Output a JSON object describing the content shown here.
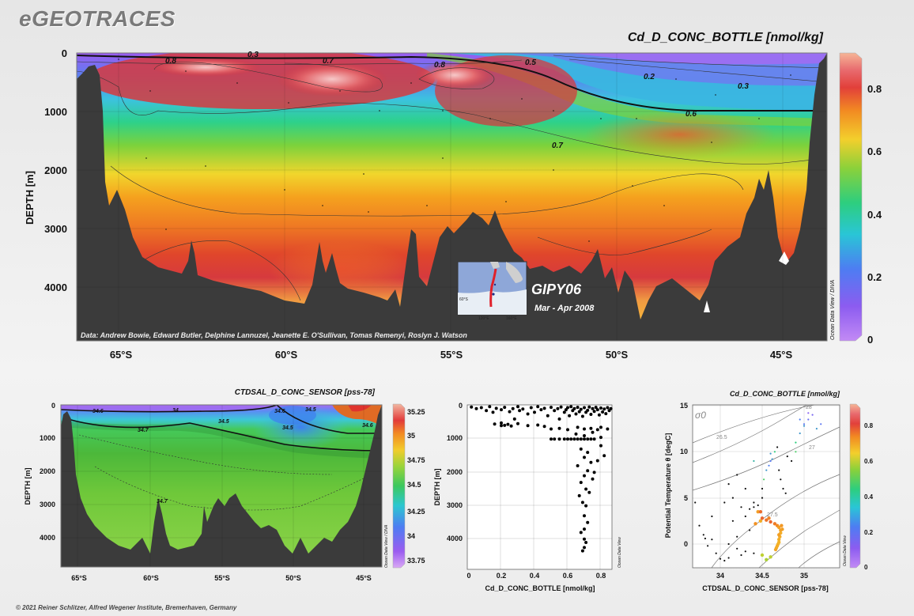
{
  "brand": "eGEOTRACES",
  "footer": "© 2021 Reiner Schlitzer, Alfred Wegener Institute, Bremerhaven, Germany",
  "chart_data": [
    {
      "type": "heatmap",
      "title": "Cd_D_CONC_BOTTLE [nmol/kg]",
      "ylabel": "DEPTH [m]",
      "x_ticks": [
        "65°S",
        "60°S",
        "55°S",
        "50°S",
        "45°S"
      ],
      "y_ticks": [
        "0",
        "1000",
        "2000",
        "3000",
        "4000"
      ],
      "colorbar_ticks": [
        "0.8",
        "0.6",
        "0.4",
        "0.2",
        "0"
      ],
      "colorbar_range": [
        0,
        0.9
      ],
      "contour_labels": [
        "0.8",
        "0.7",
        "0.8",
        "0.5",
        "0.3",
        "0.2",
        "0.3",
        "0.6",
        "0.7"
      ],
      "credit": "Data: Andrew Bowie, Edward Butler, Delphine Lannuzel, Jeanette E. O'Sullivan, Tomas Remenyi, Roslyn J. Watson",
      "side_label": "Ocean Data View / DIVA",
      "inset": {
        "cruise": "GIPY06",
        "dates": "Mar - Apr 2008"
      },
      "colors": {
        "high": "#c8323c",
        "mid": "#f5a21e",
        "low": "#9b5cf0",
        "seafloor": "#3b3b3b"
      }
    },
    {
      "type": "heatmap",
      "title": "CTDSAL_D_CONC_SENSOR [pss-78]",
      "ylabel": "DEPTH [m]",
      "x_ticks": [
        "65°S",
        "60°S",
        "55°S",
        "50°S",
        "45°S"
      ],
      "y_ticks": [
        "0",
        "1000",
        "2000",
        "3000",
        "4000"
      ],
      "colorbar_ticks": [
        "35.25",
        "35",
        "34.75",
        "34.5",
        "34.25",
        "34",
        "33.75"
      ],
      "colorbar_range": [
        33.75,
        35.25
      ],
      "contour_labels": [
        "34.6",
        "34",
        "34.5",
        "34.7",
        "34.5",
        "34.6",
        "34.5",
        "34.6",
        "34.7"
      ],
      "side_label": "Ocean Data View / DIVA"
    },
    {
      "type": "scatter",
      "xlabel": "Cd_D_CONC_BOTTLE [nmol/kg]",
      "ylabel": "DEPTH [m]",
      "x_ticks": [
        "0",
        "0.2",
        "0.4",
        "0.6",
        "0.8"
      ],
      "y_ticks": [
        "0",
        "1000",
        "2000",
        "3000",
        "4000"
      ],
      "xlim": [
        0,
        0.88
      ],
      "ylim": [
        0,
        4500
      ],
      "side_label": "Ocean Data View",
      "points": [
        [
          0.02,
          40
        ],
        [
          0.05,
          90
        ],
        [
          0.08,
          60
        ],
        [
          0.11,
          150
        ],
        [
          0.13,
          30
        ],
        [
          0.15,
          200
        ],
        [
          0.17,
          80
        ],
        [
          0.2,
          120
        ],
        [
          0.22,
          50
        ],
        [
          0.25,
          180
        ],
        [
          0.27,
          90
        ],
        [
          0.28,
          400
        ],
        [
          0.3,
          30
        ],
        [
          0.31,
          150
        ],
        [
          0.33,
          100
        ],
        [
          0.36,
          250
        ],
        [
          0.38,
          60
        ],
        [
          0.4,
          200
        ],
        [
          0.42,
          30
        ],
        [
          0.44,
          120
        ],
        [
          0.46,
          80
        ],
        [
          0.48,
          300
        ],
        [
          0.5,
          50
        ],
        [
          0.52,
          150
        ],
        [
          0.54,
          90
        ],
        [
          0.55,
          400
        ],
        [
          0.56,
          40
        ],
        [
          0.58,
          200
        ],
        [
          0.59,
          120
        ],
        [
          0.6,
          60
        ],
        [
          0.61,
          300
        ],
        [
          0.62,
          30
        ],
        [
          0.63,
          150
        ],
        [
          0.64,
          90
        ],
        [
          0.65,
          250
        ],
        [
          0.66,
          50
        ],
        [
          0.67,
          180
        ],
        [
          0.68,
          110
        ],
        [
          0.69,
          320
        ],
        [
          0.7,
          60
        ],
        [
          0.71,
          200
        ],
        [
          0.72,
          140
        ],
        [
          0.73,
          40
        ],
        [
          0.74,
          260
        ],
        [
          0.75,
          90
        ],
        [
          0.76,
          170
        ],
        [
          0.77,
          50
        ],
        [
          0.78,
          120
        ],
        [
          0.79,
          280
        ],
        [
          0.8,
          70
        ],
        [
          0.81,
          190
        ],
        [
          0.82,
          100
        ],
        [
          0.83,
          240
        ],
        [
          0.84,
          60
        ],
        [
          0.85,
          150
        ],
        [
          0.86,
          90
        ],
        [
          0.16,
          550
        ],
        [
          0.2,
          520
        ],
        [
          0.24,
          560
        ],
        [
          0.3,
          540
        ],
        [
          0.36,
          600
        ],
        [
          0.42,
          580
        ],
        [
          0.46,
          620
        ],
        [
          0.2,
          600
        ],
        [
          0.22,
          590
        ],
        [
          0.26,
          610
        ],
        [
          0.5,
          700
        ],
        [
          0.55,
          680
        ],
        [
          0.6,
          720
        ],
        [
          0.66,
          650
        ],
        [
          0.7,
          700
        ],
        [
          0.74,
          680
        ],
        [
          0.78,
          720
        ],
        [
          0.8,
          650
        ],
        [
          0.84,
          700
        ],
        [
          0.58,
          1000
        ],
        [
          0.6,
          1000
        ],
        [
          0.62,
          1000
        ],
        [
          0.64,
          1000
        ],
        [
          0.66,
          1000
        ],
        [
          0.68,
          1000
        ],
        [
          0.7,
          1000
        ],
        [
          0.72,
          1000
        ],
        [
          0.74,
          1000
        ],
        [
          0.76,
          1000
        ],
        [
          0.5,
          1000
        ],
        [
          0.52,
          1000
        ],
        [
          0.55,
          1000
        ],
        [
          0.65,
          850
        ],
        [
          0.7,
          900
        ],
        [
          0.75,
          800
        ],
        [
          0.8,
          950
        ],
        [
          0.68,
          1300
        ],
        [
          0.72,
          1400
        ],
        [
          0.7,
          1550
        ],
        [
          0.74,
          1700
        ],
        [
          0.66,
          1800
        ],
        [
          0.72,
          1950
        ],
        [
          0.7,
          2100
        ],
        [
          0.68,
          2300
        ],
        [
          0.75,
          2200
        ],
        [
          0.71,
          2500
        ],
        [
          0.67,
          2700
        ],
        [
          0.73,
          2600
        ],
        [
          0.69,
          2900
        ],
        [
          0.71,
          3000
        ],
        [
          0.7,
          3300
        ],
        [
          0.72,
          3500
        ],
        [
          0.7,
          3700
        ],
        [
          0.68,
          3800
        ],
        [
          0.7,
          4000
        ],
        [
          0.71,
          4100
        ],
        [
          0.7,
          4250
        ],
        [
          0.69,
          4350
        ],
        [
          0.8,
          1200
        ],
        [
          0.82,
          1500
        ],
        [
          0.78,
          1650
        ],
        [
          0.76,
          2000
        ]
      ]
    },
    {
      "type": "scatter",
      "title": "Cd_D_CONC_BOTTLE [nmol/kg]",
      "xlabel": "CTDSAL_D_CONC_SENSOR [pss-78]",
      "ylabel": "Potential Temperature θ [degC]",
      "x_ticks": [
        "34",
        "34.5",
        "35"
      ],
      "y_ticks": [
        "15",
        "10",
        "5",
        "0"
      ],
      "xlim": [
        33.6,
        35.35
      ],
      "ylim": [
        -2.2,
        15
      ],
      "density_label": "σ0",
      "density_isolines": [
        "26.5",
        "27",
        "27.5",
        "28"
      ],
      "colorbar_ticks": [
        "0.8",
        "0.6",
        "0.4",
        "0.2",
        "0"
      ],
      "side_label": "Ocean Data View",
      "points": [
        [
          33.7,
          4.5,
          0.7
        ],
        [
          33.75,
          2,
          0.65
        ],
        [
          33.8,
          1,
          0.7
        ],
        [
          33.82,
          0.6,
          0.68
        ],
        [
          33.85,
          -0.2,
          0.6
        ],
        [
          33.9,
          0.5,
          0.7
        ],
        [
          33.95,
          -1.0,
          0.65
        ],
        [
          34.0,
          -1.6,
          0.7
        ],
        [
          34.05,
          -1.8,
          0.6
        ],
        [
          34.1,
          -1.5,
          0.68
        ],
        [
          34.15,
          2.5,
          0.7
        ],
        [
          34.2,
          0.8,
          0.66
        ],
        [
          34.25,
          -1.2,
          0.6
        ],
        [
          34.3,
          3,
          0.7
        ],
        [
          34.35,
          1.5,
          0.68
        ],
        [
          34.4,
          4,
          0.72
        ],
        [
          34.42,
          2.2,
          0.74
        ],
        [
          34.45,
          3.5,
          0.72
        ],
        [
          34.48,
          2.5,
          0.7
        ],
        [
          34.5,
          6,
          0.5
        ],
        [
          34.52,
          7,
          0.45
        ],
        [
          34.55,
          8,
          0.3
        ],
        [
          34.58,
          8.5,
          0.25
        ],
        [
          34.6,
          9,
          0.22
        ],
        [
          34.62,
          9.2,
          0.3
        ],
        [
          34.65,
          10,
          0.4
        ],
        [
          34.68,
          10.5,
          0.5
        ],
        [
          34.7,
          8,
          0.55
        ],
        [
          34.72,
          7,
          0.6
        ],
        [
          34.75,
          6,
          0.62
        ],
        [
          34.78,
          5.5,
          0.65
        ],
        [
          34.5,
          2.8,
          0.8
        ],
        [
          34.55,
          2.6,
          0.78
        ],
        [
          34.6,
          2.4,
          0.8
        ],
        [
          34.65,
          2.2,
          0.77
        ],
        [
          34.68,
          2.0,
          0.75
        ],
        [
          34.7,
          1.8,
          0.72
        ],
        [
          34.72,
          1.5,
          0.72
        ],
        [
          34.72,
          1.2,
          0.7
        ],
        [
          34.71,
          0.8,
          0.7
        ],
        [
          34.7,
          0.5,
          0.7
        ],
        [
          34.7,
          0.2,
          0.69
        ],
        [
          34.69,
          0,
          0.69
        ],
        [
          34.68,
          -0.2,
          0.7
        ],
        [
          34.67,
          -0.4,
          0.7
        ],
        [
          34.66,
          -0.6,
          0.71
        ],
        [
          34.7,
          1.0,
          0.72
        ],
        [
          34.73,
          2.0,
          0.73
        ],
        [
          34.74,
          1.6,
          0.72
        ],
        [
          34.45,
          4.2,
          0.75
        ],
        [
          34.4,
          4.5,
          0.78
        ],
        [
          34.35,
          3.8,
          0.8
        ],
        [
          34.48,
          3.5,
          0.79
        ],
        [
          34.58,
          2.8,
          0.76
        ],
        [
          34.85,
          9,
          0.5
        ],
        [
          34.9,
          11,
          0.4
        ],
        [
          34.95,
          12,
          0.3
        ],
        [
          35.0,
          13,
          0.2
        ],
        [
          35.05,
          13.5,
          0.15
        ],
        [
          35.1,
          14,
          0.1
        ],
        [
          35.15,
          12.5,
          0.3
        ],
        [
          35.2,
          13,
          0.2
        ],
        [
          35.0,
          12.8,
          0.3
        ],
        [
          34.95,
          13.5,
          0.25
        ],
        [
          35.05,
          14.2,
          0.05
        ],
        [
          34.9,
          10,
          0.45
        ],
        [
          34.8,
          9.5,
          0.5
        ],
        [
          34.6,
          9.8,
          0.3
        ],
        [
          34.4,
          9,
          0.35
        ],
        [
          34.2,
          7.5,
          0.5
        ],
        [
          34.1,
          6.5,
          0.55
        ],
        [
          34.3,
          6,
          0.6
        ],
        [
          34.5,
          5,
          0.65
        ],
        [
          34.15,
          5,
          0.65
        ],
        [
          34.05,
          4.5,
          0.7
        ],
        [
          34.25,
          4,
          0.7
        ],
        [
          33.9,
          3,
          0.7
        ],
        [
          34.1,
          0,
          0.65
        ],
        [
          34.2,
          -0.5,
          0.62
        ],
        [
          34.3,
          -0.8,
          0.6
        ],
        [
          34.4,
          -1.0,
          0.62
        ],
        [
          34.5,
          -1.2,
          0.6
        ],
        [
          34.6,
          -1.4,
          0.6
        ],
        [
          34.55,
          -1.7,
          0.58
        ]
      ]
    }
  ]
}
